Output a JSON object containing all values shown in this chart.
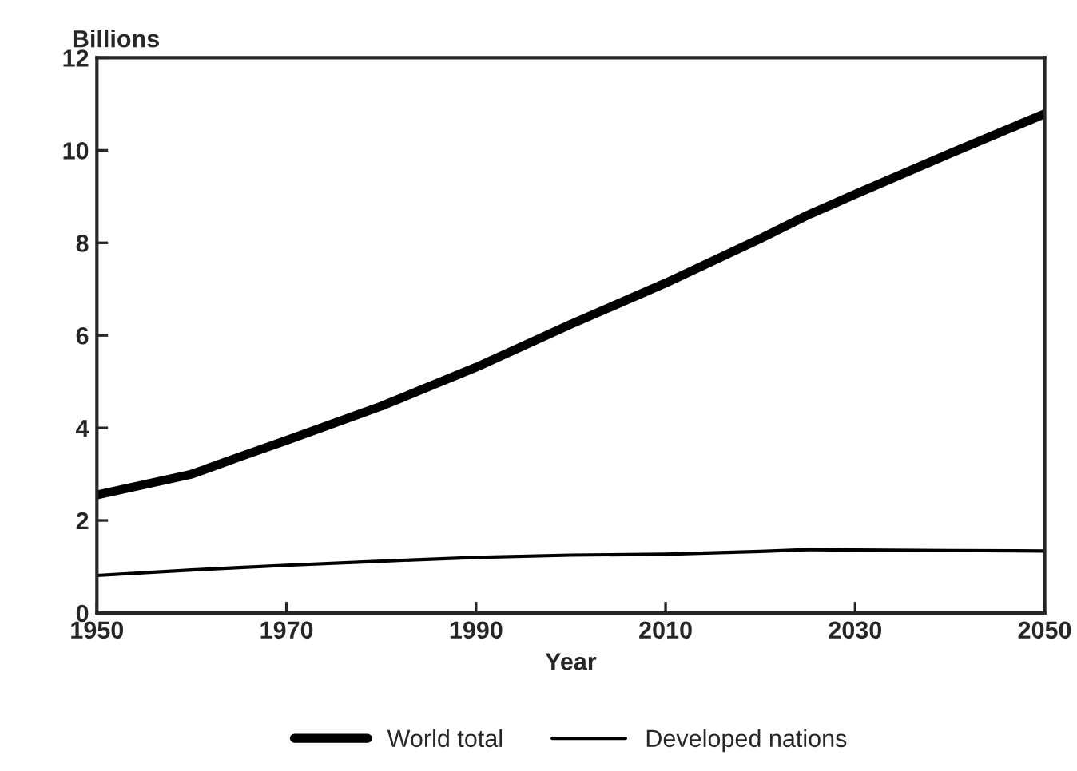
{
  "chart_data": {
    "type": "line",
    "ylabel": "Billions",
    "xlabel": "Year",
    "x": [
      1950,
      1960,
      1965,
      1970,
      1980,
      1990,
      2000,
      2010,
      2020,
      2025,
      2030,
      2040,
      2050
    ],
    "series": [
      {
        "name": "World total",
        "color": "#000000",
        "values": [
          2.55,
          3.0,
          3.37,
          3.73,
          4.47,
          5.31,
          6.24,
          7.13,
          8.09,
          8.6,
          9.05,
          9.93,
          10.79
        ]
      },
      {
        "name": "Developed nations",
        "color": "#000000",
        "values": [
          0.81,
          0.93,
          0.98,
          1.03,
          1.12,
          1.2,
          1.25,
          1.27,
          1.33,
          1.37,
          1.36,
          1.35,
          1.34
        ]
      }
    ],
    "xlim": [
      1950,
      2050
    ],
    "xticks": [
      1950,
      1970,
      1990,
      2010,
      2030,
      2050
    ],
    "ylim": [
      0,
      12
    ],
    "yticks": [
      0,
      2,
      4,
      6,
      8,
      10,
      12
    ],
    "grid": false,
    "legend": "bottom",
    "marker": "none",
    "line_style": "solid"
  }
}
